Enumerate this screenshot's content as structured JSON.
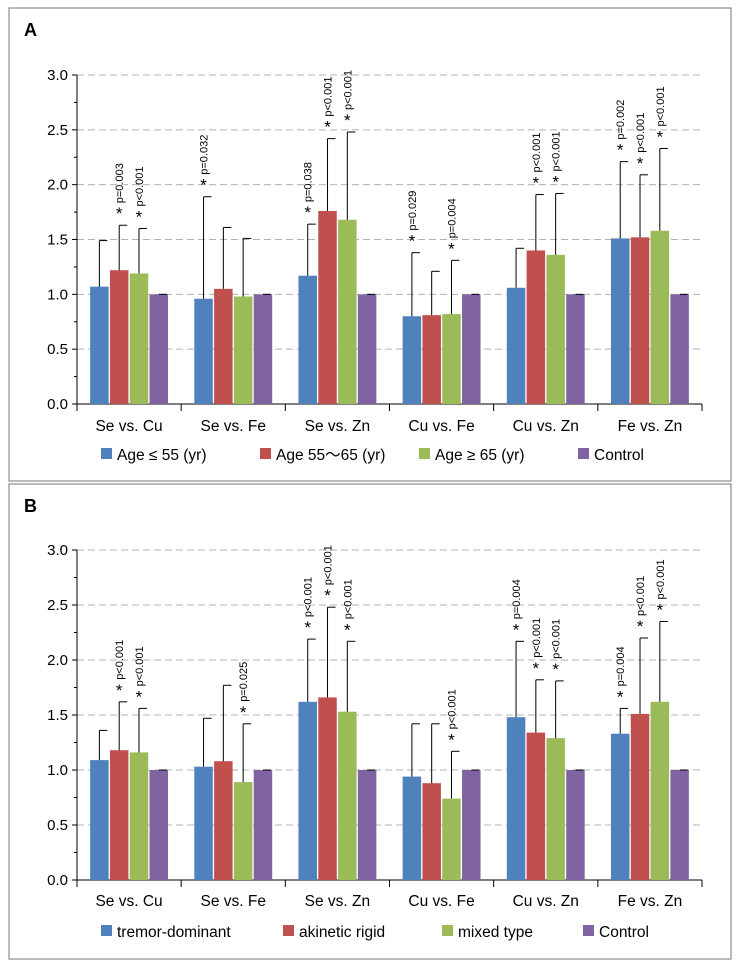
{
  "chart_data": [
    {
      "type": "bar",
      "panel_label": "A",
      "categories": [
        "Se vs. Cu",
        "Se vs. Fe",
        "Se vs. Zn",
        "Cu vs. Fe",
        "Cu vs. Zn",
        "Fe vs. Zn"
      ],
      "ylim": [
        0,
        3.0
      ],
      "yticks": [
        "0.0",
        "0.5",
        "1.0",
        "1.5",
        "2.0",
        "2.5",
        "3.0"
      ],
      "grid": true,
      "legend_position": "bottom",
      "series": [
        {
          "name": "Age ≤ 55 (yr)",
          "color": "#4f81bd",
          "values": [
            1.07,
            0.96,
            1.17,
            0.8,
            1.06,
            1.51
          ],
          "errors": [
            0.42,
            0.93,
            0.47,
            0.58,
            0.36,
            0.7
          ],
          "annotations": [
            null,
            {
              "star": "*",
              "p": "p=0.032"
            },
            {
              "star": "*",
              "p": "p=0.038"
            },
            {
              "star": "*",
              "p": "p=0.029"
            },
            null,
            {
              "star": "*",
              "p": "p=0.002"
            }
          ]
        },
        {
          "name": "Age 55～65 (yr)",
          "color": "#c0504d",
          "values": [
            1.22,
            1.05,
            1.76,
            0.81,
            1.4,
            1.52
          ],
          "errors": [
            0.41,
            0.56,
            0.66,
            0.4,
            0.51,
            0.57
          ],
          "annotations": [
            {
              "star": "*",
              "p": "p=0.003"
            },
            null,
            {
              "star": "*",
              "p": "p<0.001"
            },
            null,
            {
              "star": "*",
              "p": "p<0.001"
            },
            {
              "star": "*",
              "p": "p<0.001"
            }
          ]
        },
        {
          "name": "Age ≥ 65 (yr)",
          "color": "#9bbb59",
          "values": [
            1.19,
            0.98,
            1.68,
            0.82,
            1.36,
            1.58
          ],
          "errors": [
            0.41,
            0.53,
            0.8,
            0.49,
            0.56,
            0.75
          ],
          "annotations": [
            {
              "star": "*",
              "p": "p<0.001"
            },
            null,
            {
              "star": "*",
              "p": "p<0.001"
            },
            {
              "star": "*",
              "p": "p=0.004"
            },
            {
              "star": "*",
              "p": "p<0.001"
            },
            {
              "star": "*",
              "p": "p<0.001"
            }
          ]
        },
        {
          "name": "Control",
          "color": "#8064a2",
          "values": [
            1.0,
            1.0,
            1.0,
            1.0,
            1.0,
            1.0
          ],
          "errors": [
            0,
            0,
            0,
            0,
            0,
            0
          ],
          "annotations": [
            null,
            null,
            null,
            null,
            null,
            null
          ]
        }
      ]
    },
    {
      "type": "bar",
      "panel_label": "B",
      "categories": [
        "Se vs. Cu",
        "Se vs. Fe",
        "Se vs. Zn",
        "Cu vs. Fe",
        "Cu vs. Zn",
        "Fe vs. Zn"
      ],
      "ylim": [
        0,
        3.0
      ],
      "yticks": [
        "0.0",
        "0.5",
        "1.0",
        "1.5",
        "2.0",
        "2.5",
        "3.0"
      ],
      "grid": true,
      "legend_position": "bottom",
      "series": [
        {
          "name": "tremor-dominant",
          "color": "#4f81bd",
          "values": [
            1.09,
            1.03,
            1.62,
            0.94,
            1.48,
            1.33
          ],
          "errors": [
            0.27,
            0.44,
            0.57,
            0.48,
            0.69,
            0.23
          ],
          "annotations": [
            null,
            null,
            {
              "star": "*",
              "p": "p<0.001"
            },
            null,
            {
              "star": "*",
              "p": "p=0.004"
            },
            {
              "star": "*",
              "p": "p=0.004"
            }
          ]
        },
        {
          "name": "akinetic rigid",
          "color": "#c0504d",
          "values": [
            1.18,
            1.08,
            1.66,
            0.88,
            1.34,
            1.51
          ],
          "errors": [
            0.44,
            0.69,
            0.82,
            0.54,
            0.48,
            0.69
          ],
          "annotations": [
            {
              "star": "*",
              "p": "p<0.001"
            },
            null,
            {
              "star": "*",
              "p": "p<0.001"
            },
            null,
            {
              "star": "*",
              "p": "p<0.001"
            },
            {
              "star": "*",
              "p": "p<0.001"
            }
          ]
        },
        {
          "name": "mixed type",
          "color": "#9bbb59",
          "values": [
            1.16,
            0.89,
            1.53,
            0.74,
            1.29,
            1.62
          ],
          "errors": [
            0.4,
            0.53,
            0.64,
            0.43,
            0.52,
            0.73
          ],
          "annotations": [
            {
              "star": "*",
              "p": "p<0.001"
            },
            {
              "star": "*",
              "p": "p=0.025"
            },
            {
              "star": "*",
              "p": "p<0.001"
            },
            {
              "star": "*",
              "p": "p<0.001"
            },
            {
              "star": "*",
              "p": "p<0.001"
            },
            {
              "star": "*",
              "p": "p<0.001"
            }
          ]
        },
        {
          "name": "Control",
          "color": "#8064a2",
          "values": [
            1.0,
            1.0,
            1.0,
            1.0,
            1.0,
            1.0
          ],
          "errors": [
            0,
            0,
            0,
            0,
            0,
            0
          ],
          "annotations": [
            null,
            null,
            null,
            null,
            null,
            null
          ]
        }
      ]
    }
  ]
}
